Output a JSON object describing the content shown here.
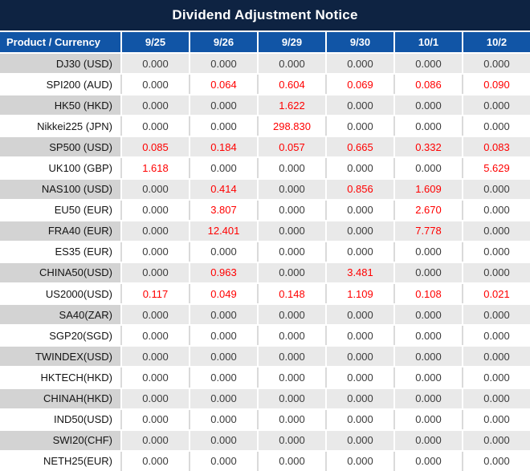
{
  "title": "Dividend Adjustment Notice",
  "colors": {
    "title_bar_bg": "#0e2342",
    "header_bg": "#1155a6",
    "header_text": "#ffffff",
    "striped_label_bg": "#d3d3d3",
    "striped_value_bg": "#e9e9e9",
    "plain_bg": "#ffffff",
    "value_text": "#3c3c3c",
    "highlight_text": "#ff0000"
  },
  "table": {
    "header": [
      "Product / Currency",
      "9/25",
      "9/26",
      "9/29",
      "9/30",
      "10/1",
      "10/2"
    ],
    "rows": [
      {
        "product": "DJ30 (USD)",
        "values": [
          "0.000",
          "0.000",
          "0.000",
          "0.000",
          "0.000",
          "0.000"
        ],
        "red": [
          false,
          false,
          false,
          false,
          false,
          false
        ]
      },
      {
        "product": "SPI200 (AUD)",
        "values": [
          "0.000",
          "0.064",
          "0.604",
          "0.069",
          "0.086",
          "0.090"
        ],
        "red": [
          false,
          true,
          true,
          true,
          true,
          true
        ]
      },
      {
        "product": "HK50 (HKD)",
        "values": [
          "0.000",
          "0.000",
          "1.622",
          "0.000",
          "0.000",
          "0.000"
        ],
        "red": [
          false,
          false,
          true,
          false,
          false,
          false
        ]
      },
      {
        "product": "Nikkei225 (JPN)",
        "values": [
          "0.000",
          "0.000",
          "298.830",
          "0.000",
          "0.000",
          "0.000"
        ],
        "red": [
          false,
          false,
          true,
          false,
          false,
          false
        ]
      },
      {
        "product": "SP500 (USD)",
        "values": [
          "0.085",
          "0.184",
          "0.057",
          "0.665",
          "0.332",
          "0.083"
        ],
        "red": [
          true,
          true,
          true,
          true,
          true,
          true
        ]
      },
      {
        "product": "UK100 (GBP)",
        "values": [
          "1.618",
          "0.000",
          "0.000",
          "0.000",
          "0.000",
          "5.629"
        ],
        "red": [
          true,
          false,
          false,
          false,
          false,
          true
        ]
      },
      {
        "product": "NAS100 (USD)",
        "values": [
          "0.000",
          "0.414",
          "0.000",
          "0.856",
          "1.609",
          "0.000"
        ],
        "red": [
          false,
          true,
          false,
          true,
          true,
          false
        ]
      },
      {
        "product": "EU50 (EUR)",
        "values": [
          "0.000",
          "3.807",
          "0.000",
          "0.000",
          "2.670",
          "0.000"
        ],
        "red": [
          false,
          true,
          false,
          false,
          true,
          false
        ]
      },
      {
        "product": "FRA40 (EUR)",
        "values": [
          "0.000",
          "12.401",
          "0.000",
          "0.000",
          "7.778",
          "0.000"
        ],
        "red": [
          false,
          true,
          false,
          false,
          true,
          false
        ]
      },
      {
        "product": "ES35 (EUR)",
        "values": [
          "0.000",
          "0.000",
          "0.000",
          "0.000",
          "0.000",
          "0.000"
        ],
        "red": [
          false,
          false,
          false,
          false,
          false,
          false
        ]
      },
      {
        "product": "CHINA50(USD)",
        "values": [
          "0.000",
          "0.963",
          "0.000",
          "3.481",
          "0.000",
          "0.000"
        ],
        "red": [
          false,
          true,
          false,
          true,
          false,
          false
        ]
      },
      {
        "product": "US2000(USD)",
        "values": [
          "0.117",
          "0.049",
          "0.148",
          "1.109",
          "0.108",
          "0.021"
        ],
        "red": [
          true,
          true,
          true,
          true,
          true,
          true
        ]
      },
      {
        "product": "SA40(ZAR)",
        "values": [
          "0.000",
          "0.000",
          "0.000",
          "0.000",
          "0.000",
          "0.000"
        ],
        "red": [
          false,
          false,
          false,
          false,
          false,
          false
        ]
      },
      {
        "product": "SGP20(SGD)",
        "values": [
          "0.000",
          "0.000",
          "0.000",
          "0.000",
          "0.000",
          "0.000"
        ],
        "red": [
          false,
          false,
          false,
          false,
          false,
          false
        ]
      },
      {
        "product": "TWINDEX(USD)",
        "values": [
          "0.000",
          "0.000",
          "0.000",
          "0.000",
          "0.000",
          "0.000"
        ],
        "red": [
          false,
          false,
          false,
          false,
          false,
          false
        ]
      },
      {
        "product": "HKTECH(HKD)",
        "values": [
          "0.000",
          "0.000",
          "0.000",
          "0.000",
          "0.000",
          "0.000"
        ],
        "red": [
          false,
          false,
          false,
          false,
          false,
          false
        ]
      },
      {
        "product": "CHINAH(HKD)",
        "values": [
          "0.000",
          "0.000",
          "0.000",
          "0.000",
          "0.000",
          "0.000"
        ],
        "red": [
          false,
          false,
          false,
          false,
          false,
          false
        ]
      },
      {
        "product": "IND50(USD)",
        "values": [
          "0.000",
          "0.000",
          "0.000",
          "0.000",
          "0.000",
          "0.000"
        ],
        "red": [
          false,
          false,
          false,
          false,
          false,
          false
        ]
      },
      {
        "product": "SWI20(CHF)",
        "values": [
          "0.000",
          "0.000",
          "0.000",
          "0.000",
          "0.000",
          "0.000"
        ],
        "red": [
          false,
          false,
          false,
          false,
          false,
          false
        ]
      },
      {
        "product": "NETH25(EUR)",
        "values": [
          "0.000",
          "0.000",
          "0.000",
          "0.000",
          "0.000",
          "0.000"
        ],
        "red": [
          false,
          false,
          false,
          false,
          false,
          false
        ]
      }
    ]
  }
}
